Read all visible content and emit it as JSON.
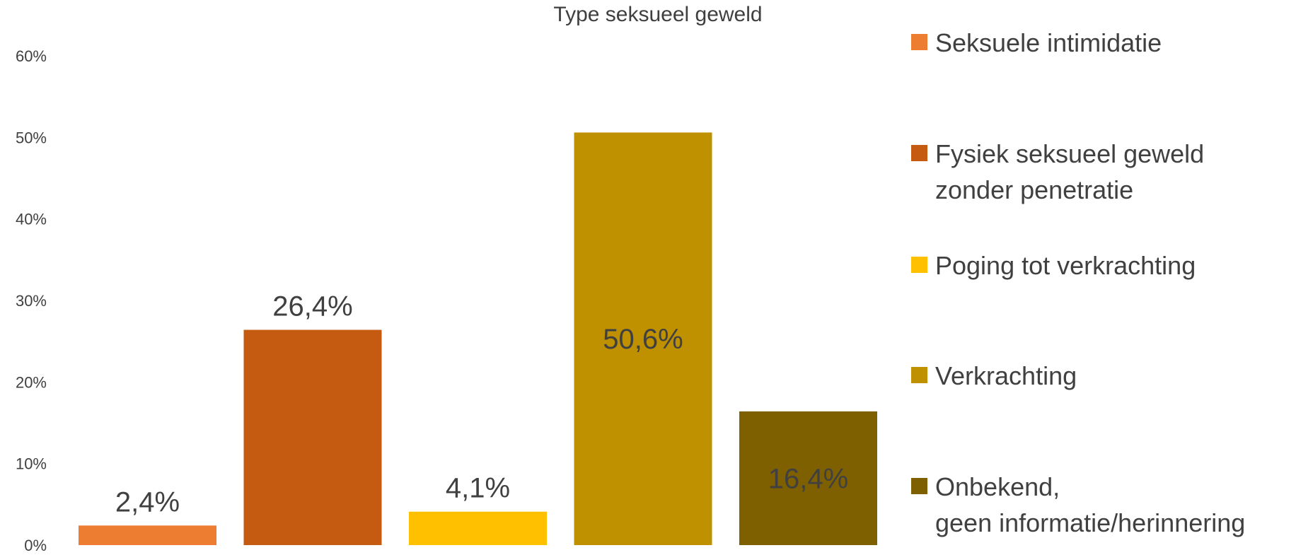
{
  "chart_data": {
    "type": "bar",
    "title": "Type seksueel geweld",
    "xlabel": "",
    "ylabel": "",
    "ylim": [
      0,
      60
    ],
    "yticks": [
      "0%",
      "10%",
      "20%",
      "30%",
      "40%",
      "50%",
      "60%"
    ],
    "grid": false,
    "legend_position": "right",
    "series": [
      {
        "name": "Seksuele intimidatie",
        "legend_lines": [
          "Seksuele intimidatie"
        ],
        "value": 2.4,
        "label": "2,4%",
        "color": "#ED7D31"
      },
      {
        "name": "Fysiek seksueel geweld zonder penetratie",
        "legend_lines": [
          "Fysiek seksueel geweld",
          "zonder penetratie"
        ],
        "value": 26.4,
        "label": "26,4%",
        "color": "#C55A11"
      },
      {
        "name": "Poging tot verkrachting",
        "legend_lines": [
          "Poging tot verkrachting"
        ],
        "value": 4.1,
        "label": "4,1%",
        "color": "#FFC000"
      },
      {
        "name": "Verkrachting",
        "legend_lines": [
          "Verkrachting"
        ],
        "value": 50.6,
        "label": "50,6%",
        "color": "#BF9000"
      },
      {
        "name": "Onbekend, geen informatie/herinnering",
        "legend_lines": [
          "Onbekend,",
          "geen informatie/herinnering"
        ],
        "value": 16.4,
        "label": "16,4%",
        "color": "#7F6000"
      }
    ]
  }
}
